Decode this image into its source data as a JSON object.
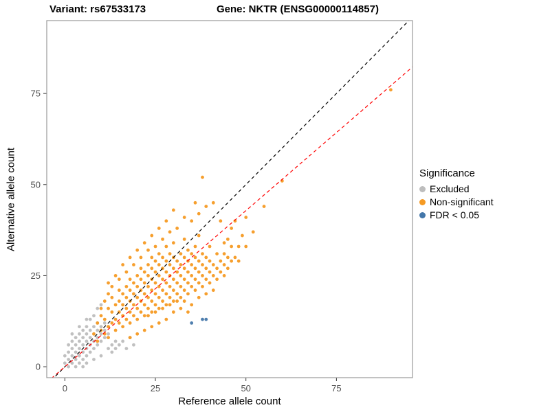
{
  "header": {
    "title_left": "Variant: rs67533173",
    "title_right": "Gene: NKTR (ENSG00000114857)"
  },
  "chart_data": {
    "type": "scatter",
    "title": "",
    "xlabel": "Reference allele count",
    "ylabel": "Alternative allele count",
    "xlim": [
      -5,
      96
    ],
    "ylim": [
      -3,
      95
    ],
    "xticks": [
      0,
      25,
      50,
      75
    ],
    "yticks": [
      0,
      25,
      50,
      75
    ],
    "grid": false,
    "panel_border_color": "#999999",
    "tick_label_color": "#4d4d4d",
    "legend": {
      "title": "Significance",
      "position": "right",
      "items": [
        {
          "label": "Excluded",
          "color": "#BDBDBD"
        },
        {
          "label": "Non-significant",
          "color": "#F59A23"
        },
        {
          "label": "FDR < 0.05",
          "color": "#4477AA"
        }
      ]
    },
    "lines": [
      {
        "name": "identity",
        "style": "dashed",
        "color": "#000000",
        "slope": 1,
        "intercept": 0
      },
      {
        "name": "fit",
        "style": "dashed",
        "color": "#FF0000",
        "slope": 0.857,
        "intercept": 0
      }
    ],
    "series": [
      {
        "name": "Excluded",
        "color": "#BDBDBD",
        "points": [
          [
            0,
            1
          ],
          [
            0,
            3
          ],
          [
            1,
            0
          ],
          [
            1,
            2
          ],
          [
            1,
            4
          ],
          [
            1,
            6
          ],
          [
            2,
            1
          ],
          [
            2,
            3
          ],
          [
            2,
            5
          ],
          [
            2,
            7
          ],
          [
            2,
            9
          ],
          [
            3,
            0
          ],
          [
            3,
            2
          ],
          [
            3,
            4
          ],
          [
            3,
            6
          ],
          [
            3,
            8
          ],
          [
            4,
            1
          ],
          [
            4,
            3
          ],
          [
            4,
            5
          ],
          [
            4,
            7
          ],
          [
            4,
            9
          ],
          [
            4,
            11
          ],
          [
            5,
            0
          ],
          [
            5,
            2
          ],
          [
            5,
            4
          ],
          [
            5,
            6
          ],
          [
            5,
            8
          ],
          [
            5,
            10
          ],
          [
            6,
            1
          ],
          [
            6,
            3
          ],
          [
            6,
            5
          ],
          [
            6,
            7
          ],
          [
            6,
            9
          ],
          [
            6,
            11
          ],
          [
            6,
            13
          ],
          [
            7,
            4
          ],
          [
            7,
            6
          ],
          [
            7,
            8
          ],
          [
            7,
            10
          ],
          [
            7,
            13
          ],
          [
            8,
            2
          ],
          [
            8,
            5
          ],
          [
            8,
            7
          ],
          [
            8,
            9
          ],
          [
            8,
            11
          ],
          [
            8,
            14
          ],
          [
            9,
            6
          ],
          [
            9,
            8
          ],
          [
            9,
            10
          ],
          [
            9,
            12
          ],
          [
            9,
            16
          ],
          [
            10,
            3
          ],
          [
            10,
            7
          ],
          [
            10,
            9
          ],
          [
            10,
            11
          ],
          [
            10,
            17
          ],
          [
            11,
            8
          ],
          [
            11,
            10
          ],
          [
            11,
            12
          ],
          [
            12,
            5
          ],
          [
            12,
            9
          ],
          [
            12,
            11
          ],
          [
            13,
            4
          ],
          [
            13,
            6
          ],
          [
            14,
            5
          ],
          [
            14,
            7
          ],
          [
            15,
            6
          ],
          [
            16,
            7
          ],
          [
            17,
            5
          ],
          [
            18,
            8
          ],
          [
            19,
            6
          ]
        ]
      },
      {
        "name": "Non-significant",
        "color": "#F59A23",
        "points": [
          [
            8,
            9
          ],
          [
            9,
            7
          ],
          [
            9,
            12
          ],
          [
            10,
            10
          ],
          [
            10,
            14
          ],
          [
            10,
            16
          ],
          [
            11,
            9
          ],
          [
            11,
            13
          ],
          [
            11,
            18
          ],
          [
            12,
            8
          ],
          [
            12,
            11
          ],
          [
            12,
            16
          ],
          [
            12,
            20
          ],
          [
            12,
            23
          ],
          [
            13,
            12
          ],
          [
            13,
            15
          ],
          [
            13,
            19
          ],
          [
            13,
            22
          ],
          [
            14,
            10
          ],
          [
            14,
            13
          ],
          [
            14,
            17
          ],
          [
            14,
            25
          ],
          [
            15,
            12
          ],
          [
            15,
            15
          ],
          [
            15,
            18
          ],
          [
            15,
            21
          ],
          [
            15,
            24
          ],
          [
            16,
            11
          ],
          [
            16,
            14
          ],
          [
            16,
            17
          ],
          [
            16,
            20
          ],
          [
            16,
            28
          ],
          [
            17,
            13
          ],
          [
            17,
            16
          ],
          [
            17,
            19
          ],
          [
            17,
            22
          ],
          [
            17,
            26
          ],
          [
            18,
            8
          ],
          [
            18,
            12
          ],
          [
            18,
            15
          ],
          [
            18,
            18
          ],
          [
            18,
            21
          ],
          [
            18,
            24
          ],
          [
            18,
            30
          ],
          [
            19,
            14
          ],
          [
            19,
            17
          ],
          [
            19,
            20
          ],
          [
            19,
            23
          ],
          [
            19,
            28
          ],
          [
            20,
            9
          ],
          [
            20,
            13
          ],
          [
            20,
            16
          ],
          [
            20,
            19
          ],
          [
            20,
            22
          ],
          [
            20,
            25
          ],
          [
            20,
            32
          ],
          [
            21,
            15
          ],
          [
            21,
            18
          ],
          [
            21,
            21
          ],
          [
            21,
            24
          ],
          [
            21,
            27
          ],
          [
            21,
            30
          ],
          [
            22,
            10
          ],
          [
            22,
            14
          ],
          [
            22,
            17
          ],
          [
            22,
            20
          ],
          [
            22,
            23
          ],
          [
            22,
            26
          ],
          [
            22,
            34
          ],
          [
            23,
            14
          ],
          [
            23,
            16
          ],
          [
            23,
            19
          ],
          [
            23,
            22
          ],
          [
            23,
            25
          ],
          [
            23,
            28
          ],
          [
            23,
            32
          ],
          [
            24,
            11
          ],
          [
            24,
            15
          ],
          [
            24,
            18
          ],
          [
            24,
            21
          ],
          [
            24,
            24
          ],
          [
            24,
            27
          ],
          [
            24,
            30
          ],
          [
            24,
            36
          ],
          [
            25,
            15
          ],
          [
            25,
            17
          ],
          [
            25,
            20
          ],
          [
            25,
            23
          ],
          [
            25,
            26
          ],
          [
            25,
            29
          ],
          [
            25,
            33
          ],
          [
            26,
            12
          ],
          [
            26,
            16
          ],
          [
            26,
            19
          ],
          [
            26,
            22
          ],
          [
            26,
            25
          ],
          [
            26,
            28
          ],
          [
            26,
            31
          ],
          [
            26,
            38
          ],
          [
            27,
            16
          ],
          [
            27,
            18
          ],
          [
            27,
            21
          ],
          [
            27,
            24
          ],
          [
            27,
            27
          ],
          [
            27,
            30
          ],
          [
            27,
            35
          ],
          [
            28,
            13
          ],
          [
            28,
            17
          ],
          [
            28,
            20
          ],
          [
            28,
            23
          ],
          [
            28,
            26
          ],
          [
            28,
            29
          ],
          [
            28,
            33
          ],
          [
            28,
            40
          ],
          [
            29,
            17
          ],
          [
            29,
            19
          ],
          [
            29,
            22
          ],
          [
            29,
            25
          ],
          [
            29,
            28
          ],
          [
            29,
            31
          ],
          [
            29,
            37
          ],
          [
            30,
            15
          ],
          [
            30,
            18
          ],
          [
            30,
            21
          ],
          [
            30,
            24
          ],
          [
            30,
            27
          ],
          [
            30,
            30
          ],
          [
            30,
            34
          ],
          [
            30,
            43
          ],
          [
            31,
            18
          ],
          [
            31,
            20
          ],
          [
            31,
            23
          ],
          [
            31,
            26
          ],
          [
            31,
            29
          ],
          [
            31,
            38
          ],
          [
            32,
            16
          ],
          [
            32,
            19
          ],
          [
            32,
            22
          ],
          [
            32,
            25
          ],
          [
            32,
            28
          ],
          [
            32,
            31
          ],
          [
            33,
            18
          ],
          [
            33,
            21
          ],
          [
            33,
            24
          ],
          [
            33,
            27
          ],
          [
            33,
            30
          ],
          [
            33,
            35
          ],
          [
            33,
            41
          ],
          [
            34,
            15
          ],
          [
            34,
            20
          ],
          [
            34,
            23
          ],
          [
            34,
            26
          ],
          [
            34,
            29
          ],
          [
            34,
            32
          ],
          [
            35,
            17
          ],
          [
            35,
            22
          ],
          [
            35,
            25
          ],
          [
            35,
            28
          ],
          [
            35,
            31
          ],
          [
            35,
            40
          ],
          [
            36,
            21
          ],
          [
            36,
            24
          ],
          [
            36,
            27
          ],
          [
            36,
            30
          ],
          [
            36,
            33
          ],
          [
            36,
            45
          ],
          [
            37,
            19
          ],
          [
            37,
            23
          ],
          [
            37,
            26
          ],
          [
            37,
            29
          ],
          [
            37,
            36
          ],
          [
            37,
            42
          ],
          [
            38,
            22
          ],
          [
            38,
            25
          ],
          [
            38,
            28
          ],
          [
            38,
            31
          ],
          [
            38,
            52
          ],
          [
            39,
            20
          ],
          [
            39,
            24
          ],
          [
            39,
            27
          ],
          [
            39,
            30
          ],
          [
            39,
            44
          ],
          [
            40,
            23
          ],
          [
            40,
            26
          ],
          [
            40,
            29
          ],
          [
            40,
            33
          ],
          [
            41,
            21
          ],
          [
            41,
            25
          ],
          [
            41,
            28
          ],
          [
            41,
            45
          ],
          [
            42,
            24
          ],
          [
            42,
            27
          ],
          [
            42,
            31
          ],
          [
            43,
            26
          ],
          [
            43,
            29
          ],
          [
            43,
            40
          ],
          [
            44,
            25
          ],
          [
            44,
            28
          ],
          [
            44,
            31
          ],
          [
            44,
            34
          ],
          [
            45,
            27
          ],
          [
            45,
            30
          ],
          [
            45,
            35
          ],
          [
            46,
            29
          ],
          [
            46,
            33
          ],
          [
            46,
            38
          ],
          [
            47,
            30
          ],
          [
            47,
            40
          ],
          [
            48,
            29
          ],
          [
            48,
            33
          ],
          [
            49,
            36
          ],
          [
            50,
            33
          ],
          [
            50,
            41
          ],
          [
            52,
            37
          ],
          [
            55,
            44
          ],
          [
            60,
            51
          ],
          [
            90,
            76
          ]
        ]
      },
      {
        "name": "FDR < 0.05",
        "color": "#4477AA",
        "points": [
          [
            35,
            12
          ],
          [
            38,
            13
          ],
          [
            39,
            13
          ]
        ]
      }
    ]
  }
}
